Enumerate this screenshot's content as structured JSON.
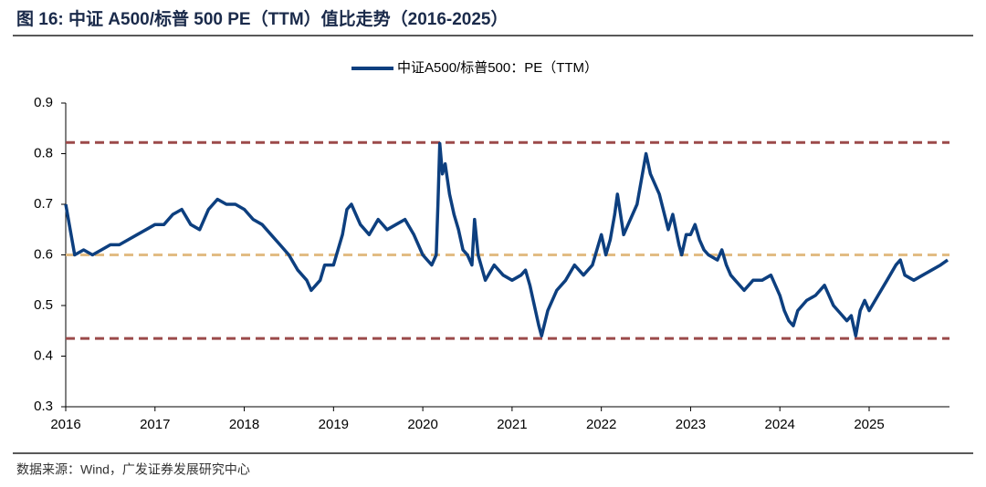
{
  "chart_data": {
    "type": "line",
    "title": "图 16:  中证 A500/标普 500 PE（TTM）值比走势（2016-2025）",
    "source": "数据来源：Wind，广发证券发展研究中心",
    "legend": "top",
    "x": [
      2016.0,
      2016.05,
      2016.1,
      2016.2,
      2016.3,
      2016.4,
      2016.5,
      2016.6,
      2016.7,
      2016.8,
      2016.9,
      2017.0,
      2017.1,
      2017.2,
      2017.3,
      2017.4,
      2017.5,
      2017.6,
      2017.7,
      2017.8,
      2017.9,
      2018.0,
      2018.1,
      2018.2,
      2018.3,
      2018.4,
      2018.5,
      2018.6,
      2018.7,
      2018.75,
      2018.85,
      2018.9,
      2019.0,
      2019.1,
      2019.15,
      2019.2,
      2019.3,
      2019.4,
      2019.5,
      2019.6,
      2019.7,
      2019.8,
      2019.9,
      2020.0,
      2020.05,
      2020.1,
      2020.15,
      2020.17,
      2020.19,
      2020.22,
      2020.25,
      2020.3,
      2020.35,
      2020.4,
      2020.45,
      2020.5,
      2020.55,
      2020.58,
      2020.62,
      2020.7,
      2020.8,
      2020.9,
      2021.0,
      2021.1,
      2021.15,
      2021.2,
      2021.25,
      2021.3,
      2021.33,
      2021.4,
      2021.5,
      2021.6,
      2021.7,
      2021.8,
      2021.9,
      2022.0,
      2022.05,
      2022.1,
      2022.15,
      2022.18,
      2022.25,
      2022.3,
      2022.4,
      2022.5,
      2022.55,
      2022.65,
      2022.75,
      2022.8,
      2022.87,
      2022.9,
      2022.95,
      2023.0,
      2023.05,
      2023.1,
      2023.15,
      2023.2,
      2023.3,
      2023.35,
      2023.4,
      2023.45,
      2023.5,
      2023.6,
      2023.7,
      2023.8,
      2023.9,
      2024.0,
      2024.05,
      2024.1,
      2024.15,
      2024.2,
      2024.3,
      2024.4,
      2024.5,
      2024.6,
      2024.7,
      2024.75,
      2024.8,
      2024.85,
      2024.9,
      2024.95,
      2025.0,
      2025.1,
      2025.2,
      2025.3,
      2025.35,
      2025.4,
      2025.5,
      2025.6,
      2025.7,
      2025.8,
      2025.88
    ],
    "series": [
      {
        "name": "中证A500/标普500：PE（TTM）",
        "color": "#0d3f7f",
        "values": [
          0.7,
          0.65,
          0.6,
          0.61,
          0.6,
          0.61,
          0.62,
          0.62,
          0.63,
          0.64,
          0.65,
          0.66,
          0.66,
          0.68,
          0.69,
          0.66,
          0.65,
          0.69,
          0.71,
          0.7,
          0.7,
          0.69,
          0.67,
          0.66,
          0.64,
          0.62,
          0.6,
          0.57,
          0.55,
          0.53,
          0.55,
          0.58,
          0.58,
          0.64,
          0.69,
          0.7,
          0.66,
          0.64,
          0.67,
          0.65,
          0.66,
          0.67,
          0.64,
          0.6,
          0.59,
          0.58,
          0.6,
          0.7,
          0.82,
          0.76,
          0.78,
          0.72,
          0.68,
          0.65,
          0.61,
          0.6,
          0.58,
          0.67,
          0.6,
          0.55,
          0.58,
          0.56,
          0.55,
          0.56,
          0.57,
          0.54,
          0.5,
          0.46,
          0.44,
          0.49,
          0.53,
          0.55,
          0.58,
          0.56,
          0.58,
          0.64,
          0.6,
          0.63,
          0.68,
          0.72,
          0.64,
          0.66,
          0.7,
          0.8,
          0.76,
          0.72,
          0.65,
          0.68,
          0.62,
          0.6,
          0.64,
          0.64,
          0.66,
          0.63,
          0.61,
          0.6,
          0.59,
          0.61,
          0.58,
          0.56,
          0.55,
          0.53,
          0.55,
          0.55,
          0.56,
          0.52,
          0.49,
          0.47,
          0.46,
          0.49,
          0.51,
          0.52,
          0.54,
          0.5,
          0.48,
          0.47,
          0.48,
          0.44,
          0.49,
          0.51,
          0.49,
          0.52,
          0.55,
          0.58,
          0.59,
          0.56,
          0.55,
          0.56,
          0.57,
          0.58,
          0.59
        ]
      }
    ],
    "reference_lines": [
      {
        "value": 0.822,
        "color": "#9b4a4a"
      },
      {
        "value": 0.6,
        "color": "#e2bc84"
      },
      {
        "value": 0.435,
        "color": "#9b4a4a"
      }
    ],
    "xlim": [
      2016,
      2025.9
    ],
    "xticks": [
      2016,
      2017,
      2018,
      2019,
      2020,
      2021,
      2022,
      2023,
      2024,
      2025
    ],
    "ylim": [
      0.3,
      0.9
    ],
    "yticks": [
      0.3,
      0.4,
      0.5,
      0.6,
      0.7,
      0.8,
      0.9
    ]
  }
}
